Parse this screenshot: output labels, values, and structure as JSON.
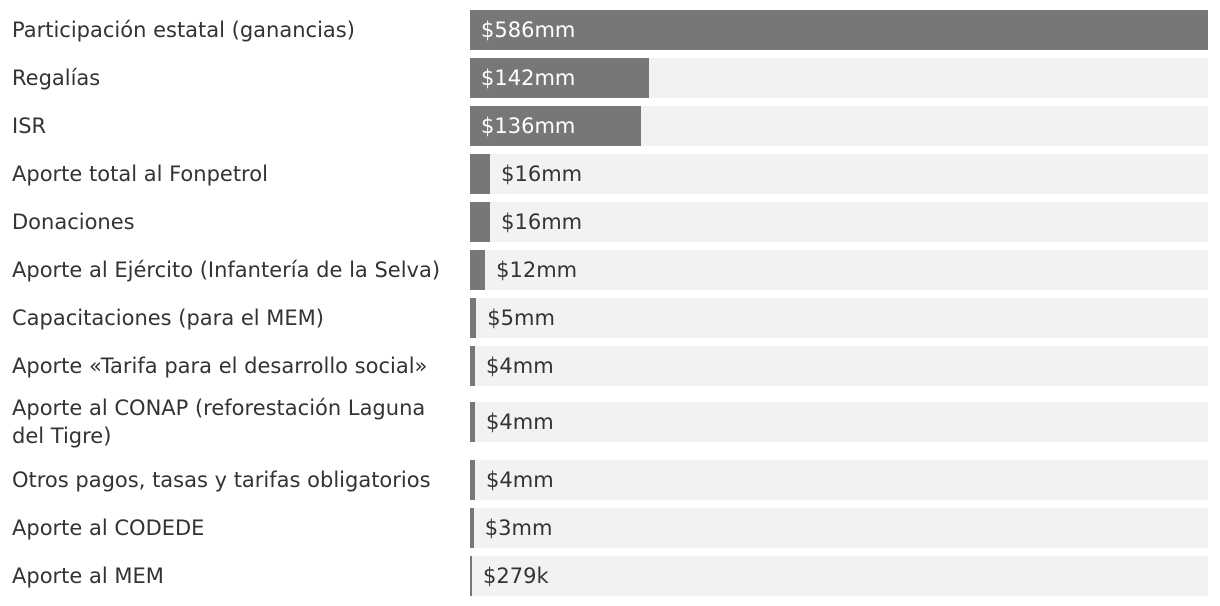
{
  "chart_data": {
    "type": "bar",
    "orientation": "horizontal",
    "title": "",
    "xlabel": "",
    "ylabel": "",
    "xlim": [
      0,
      586
    ],
    "grid": false,
    "colors": {
      "bar": "#777777",
      "track": "#f2f2f2",
      "label_inside": "#ffffff",
      "label_outside": "#333333"
    },
    "categories": [
      "Participación estatal (ganancias)",
      "Regalías",
      "ISR",
      "Aporte total al Fonpetrol",
      "Donaciones",
      "Aporte al Ejército (Infantería de la Selva)",
      "Capacitaciones (para el MEM)",
      "Aporte «Tarifa para el desarrollo social»",
      "Aporte al CONAP (reforestación Laguna del Tigre)",
      "Otros pagos, tasas y tarifas obligatorios",
      "Aporte al CODEDE",
      "Aporte al MEM"
    ],
    "values": [
      586,
      142,
      136,
      16,
      16,
      12,
      5,
      4,
      4,
      4,
      3,
      0.279
    ],
    "value_labels": [
      "$586mm",
      "$142mm",
      "$136mm",
      "$16mm",
      "$16mm",
      "$12mm",
      "$5mm",
      "$4mm",
      "$4mm",
      "$4mm",
      "$3mm",
      "$279k"
    ]
  }
}
